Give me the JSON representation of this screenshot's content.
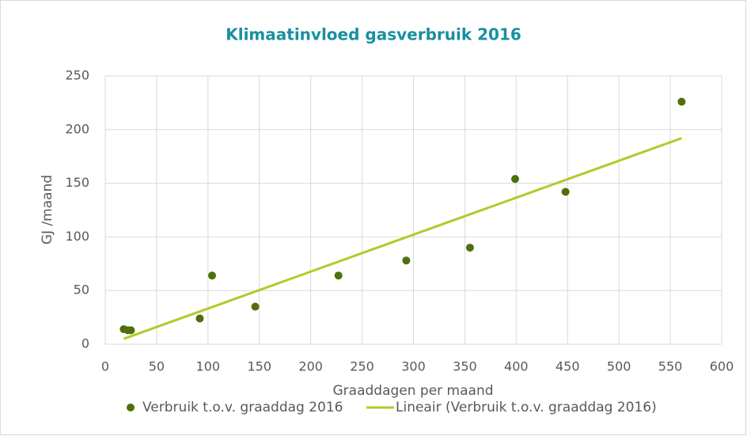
{
  "chart_data": {
    "type": "scatter",
    "title": "Klimaatinvloed gasverbruik 2016",
    "x_label": "Graaddagen per maand",
    "y_label": "GJ /maand",
    "xlim": [
      0,
      600
    ],
    "xticks": [
      0,
      50,
      100,
      150,
      200,
      250,
      300,
      350,
      400,
      450,
      500,
      550,
      600
    ],
    "ylim": [
      0,
      250
    ],
    "yticks": [
      0,
      50,
      100,
      150,
      200,
      250
    ],
    "grid": true,
    "legend": "bottom",
    "series": [
      {
        "name": "Verbruik t.o.v. graaddag 2016",
        "color": "#4f6f0a",
        "kind": "scatter",
        "x": [
          18,
          22,
          25,
          92,
          104,
          146,
          227,
          293,
          355,
          399,
          448,
          561
        ],
        "values": [
          14,
          13,
          13,
          24,
          64,
          35,
          64,
          78,
          90,
          154,
          142,
          226
        ]
      },
      {
        "name": "Lineair (Verbruik t.o.v. graaddag 2016)",
        "color": "#b5c928",
        "kind": "line",
        "x": [
          18,
          561
        ],
        "values": [
          5,
          192
        ]
      }
    ]
  }
}
